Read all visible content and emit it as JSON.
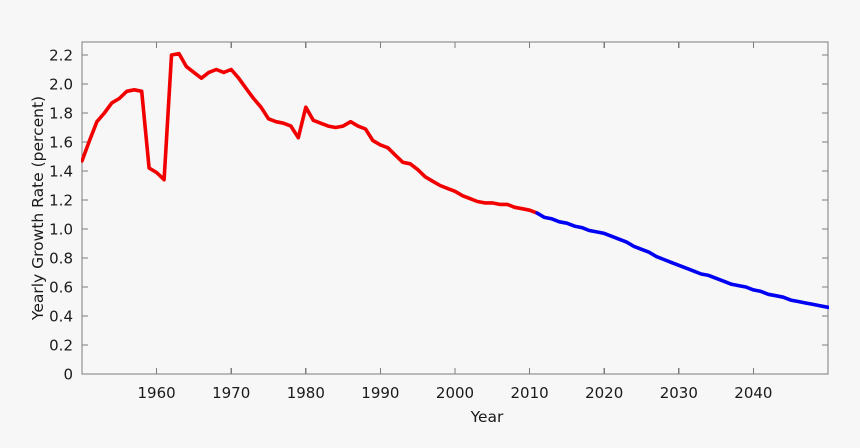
{
  "chart_data": {
    "type": "line",
    "title": "",
    "xlabel": "Year",
    "ylabel": "Yearly Growth Rate (percent)",
    "xlim": [
      1950,
      2050
    ],
    "ylim": [
      0,
      2.29
    ],
    "grid": false,
    "legend_position": "none",
    "frame": "full-box-with-inward-ticks",
    "y_ticks": [
      {
        "value": 0.0,
        "label": "0"
      },
      {
        "value": 0.2,
        "label": "0.2"
      },
      {
        "value": 0.4,
        "label": "0.4"
      },
      {
        "value": 0.6,
        "label": "0.6"
      },
      {
        "value": 0.8,
        "label": "0.8"
      },
      {
        "value": 1.0,
        "label": "1.0"
      },
      {
        "value": 1.2,
        "label": "1.2"
      },
      {
        "value": 1.4,
        "label": "1.4"
      },
      {
        "value": 1.6,
        "label": "1.6"
      },
      {
        "value": 1.8,
        "label": "1.8"
      },
      {
        "value": 2.0,
        "label": "2.0"
      },
      {
        "value": 2.2,
        "label": "2.2"
      }
    ],
    "x_tick_groups": [
      {
        "name": "historical-years",
        "color": "#1a1a1a",
        "ticks": [
          1960,
          1970,
          1980,
          1990,
          2000
        ]
      },
      {
        "name": "projected-years",
        "color": "#2d2dd6",
        "ticks": [
          2010,
          2020,
          2030,
          2040
        ]
      }
    ],
    "series": [
      {
        "name": "historical",
        "color": "#f20000",
        "x": [
          1950,
          1951,
          1952,
          1953,
          1954,
          1955,
          1956,
          1957,
          1958,
          1959,
          1960,
          1961,
          1962,
          1963,
          1964,
          1965,
          1966,
          1967,
          1968,
          1969,
          1970,
          1971,
          1972,
          1973,
          1974,
          1975,
          1976,
          1977,
          1978,
          1979,
          1980,
          1981,
          1982,
          1983,
          1984,
          1985,
          1986,
          1987,
          1988,
          1989,
          1990,
          1991,
          1992,
          1993,
          1994,
          1995,
          1996,
          1997,
          1998,
          1999,
          2000,
          2001,
          2002,
          2003,
          2004,
          2005,
          2006,
          2007,
          2008,
          2009,
          2010,
          2011
        ],
        "values": [
          1.47,
          1.61,
          1.74,
          1.8,
          1.87,
          1.9,
          1.95,
          1.96,
          1.95,
          1.42,
          1.39,
          1.34,
          2.2,
          2.21,
          2.12,
          2.08,
          2.04,
          2.08,
          2.1,
          2.08,
          2.1,
          2.04,
          1.97,
          1.9,
          1.84,
          1.76,
          1.74,
          1.73,
          1.71,
          1.63,
          1.84,
          1.75,
          1.73,
          1.71,
          1.7,
          1.71,
          1.74,
          1.71,
          1.69,
          1.61,
          1.58,
          1.56,
          1.51,
          1.46,
          1.45,
          1.41,
          1.36,
          1.33,
          1.3,
          1.28,
          1.26,
          1.23,
          1.21,
          1.19,
          1.18,
          1.18,
          1.17,
          1.17,
          1.15,
          1.14,
          1.13,
          1.11
        ]
      },
      {
        "name": "projected",
        "color": "#0000f2",
        "x": [
          2011,
          2012,
          2013,
          2014,
          2015,
          2016,
          2017,
          2018,
          2019,
          2020,
          2021,
          2022,
          2023,
          2024,
          2025,
          2026,
          2027,
          2028,
          2029,
          2030,
          2031,
          2032,
          2033,
          2034,
          2035,
          2036,
          2037,
          2038,
          2039,
          2040,
          2041,
          2042,
          2043,
          2044,
          2045,
          2046,
          2047,
          2048,
          2049,
          2050
        ],
        "values": [
          1.11,
          1.08,
          1.07,
          1.05,
          1.04,
          1.02,
          1.01,
          0.99,
          0.98,
          0.97,
          0.95,
          0.93,
          0.91,
          0.88,
          0.86,
          0.84,
          0.81,
          0.79,
          0.77,
          0.75,
          0.73,
          0.71,
          0.69,
          0.68,
          0.66,
          0.64,
          0.62,
          0.61,
          0.6,
          0.58,
          0.57,
          0.55,
          0.54,
          0.53,
          0.51,
          0.5,
          0.49,
          0.48,
          0.47,
          0.46
        ]
      }
    ]
  },
  "style": {
    "background": "#f7f7f7",
    "spine_color": "#7d7d7d",
    "tick_color": "#7d7d7d",
    "tick_label_color": "#1a1a1a",
    "line_width": 3.6
  }
}
